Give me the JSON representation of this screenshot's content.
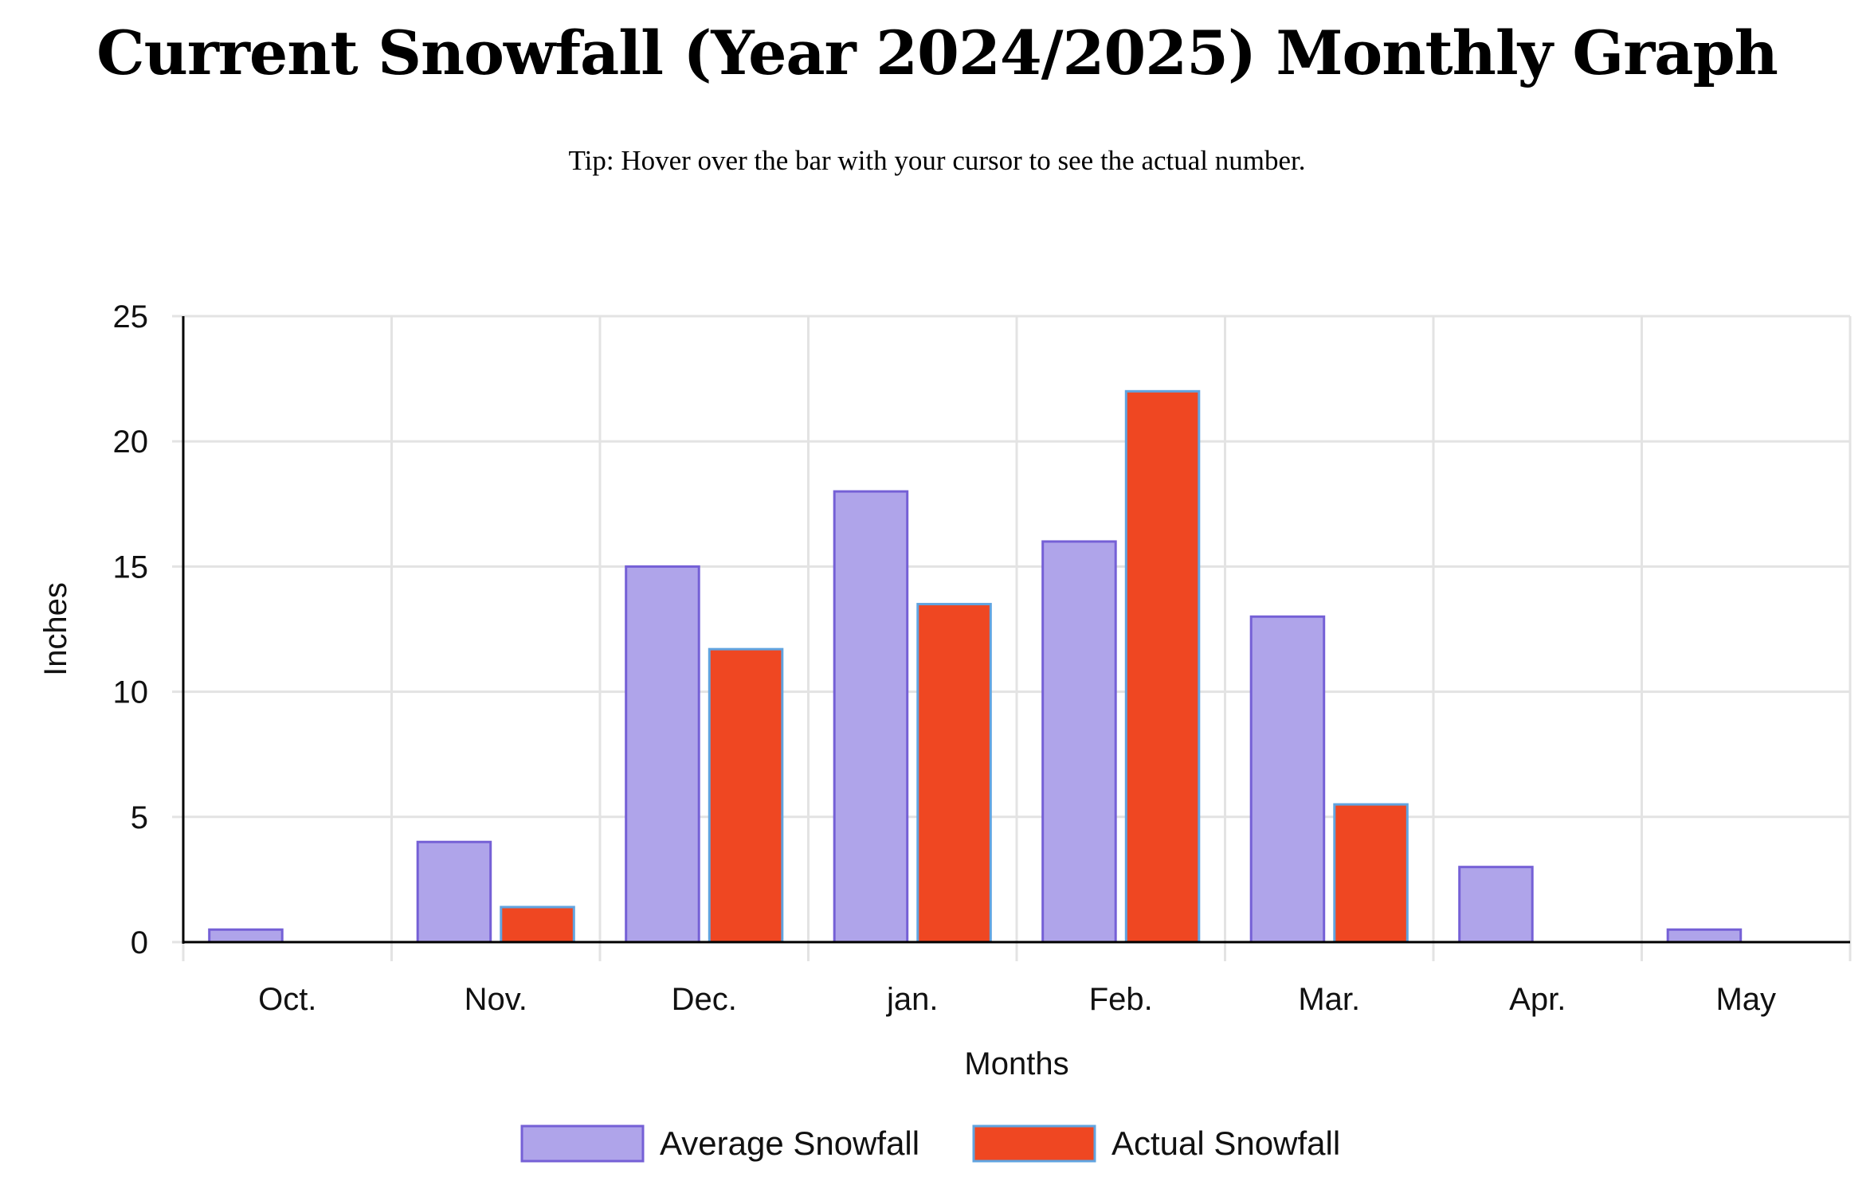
{
  "page": {
    "title": "Current Snowfall (Year 2024/2025) Monthly Graph",
    "tip": "Tip: Hover over the bar with your cursor to see the actual number."
  },
  "colors": {
    "average_fill": "#afa4ea",
    "average_stroke": "#7560d6",
    "actual_fill": "#ef4722",
    "actual_stroke": "#61a4e0",
    "grid": "#e3e3e3",
    "axis": "#000000"
  },
  "chart_data": {
    "type": "bar",
    "title": "",
    "xlabel": "Months",
    "ylabel": "Inches",
    "categories": [
      "Oct.",
      "Nov.",
      "Dec.",
      "jan.",
      "Feb.",
      "Mar.",
      "Apr.",
      "May"
    ],
    "series": [
      {
        "name": "Average Snowfall",
        "values": [
          0.5,
          4,
          15,
          18,
          16,
          13,
          3,
          0.5
        ]
      },
      {
        "name": "Actual Snowfall",
        "values": [
          0,
          1.4,
          11.7,
          13.5,
          22,
          5.5,
          0,
          0
        ]
      }
    ],
    "ylim": [
      0,
      25
    ],
    "yticks": [
      "0",
      "5",
      "10",
      "15",
      "20",
      "25"
    ],
    "grid": true,
    "legend_position": "bottom-center"
  }
}
